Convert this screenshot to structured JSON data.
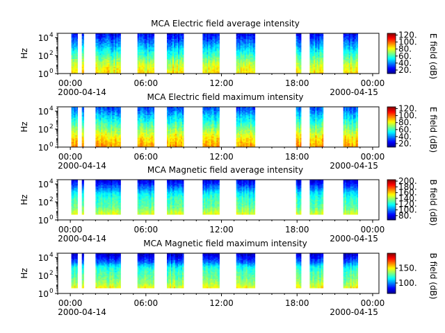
{
  "figure": {
    "x_tick_labels": [
      "00:00",
      "06:00",
      "12:00",
      "18:00",
      "00:00"
    ],
    "x_start_date": "2000-04-14",
    "x_end_date": "2000-04-15"
  },
  "colormap": [
    "#00008f",
    "#0000ff",
    "#007fff",
    "#00ffff",
    "#7fff7f",
    "#ffff00",
    "#ff7f00",
    "#ff0000",
    "#7f0000"
  ],
  "chart_data": [
    {
      "type": "heatmap",
      "title": "MCA  Electric field average intensity",
      "ylabel": "Hz",
      "y_scale": "log",
      "ylim": [
        1,
        30000
      ],
      "y_tick_labels": [
        "10",
        "10",
        "10"
      ],
      "y_tick_exponents": [
        "0",
        "2",
        "4"
      ],
      "xlim": [
        "2000-04-13T23:00",
        "2000-04-15T00:30"
      ],
      "colorbar": {
        "label": "E field (dB)",
        "ticks": [
          "120.",
          "100.",
          "80.",
          "60.",
          "40.",
          "20."
        ],
        "range": [
          10,
          125
        ]
      },
      "data_intervals": [
        [
          "00:05",
          "00:35"
        ],
        [
          "00:55",
          "01:05"
        ],
        [
          "02:00",
          "04:00"
        ],
        [
          "05:20",
          "06:40"
        ],
        [
          "07:40",
          "09:00"
        ],
        [
          "10:30",
          "11:50"
        ],
        [
          "13:10",
          "14:40"
        ],
        [
          "17:55",
          "18:20"
        ],
        [
          "19:00",
          "20:05"
        ],
        [
          "21:40",
          "22:50"
        ]
      ],
      "spectrum_dB": {
        "log10_Hz": [
          0,
          1,
          2,
          3,
          4.3
        ],
        "average": [
          85,
          75,
          60,
          45,
          25
        ]
      }
    },
    {
      "type": "heatmap",
      "title": "MCA  Electric field maximum intensity",
      "ylabel": "Hz",
      "y_scale": "log",
      "ylim": [
        1,
        30000
      ],
      "y_tick_labels": [
        "10",
        "10",
        "10"
      ],
      "y_tick_exponents": [
        "0",
        "2",
        "4"
      ],
      "xlim": [
        "2000-04-13T23:00",
        "2000-04-15T00:30"
      ],
      "colorbar": {
        "label": "E field (dB)",
        "ticks": [
          "120.",
          "100.",
          "80.",
          "60.",
          "40.",
          "20."
        ],
        "range": [
          10,
          125
        ]
      },
      "data_intervals": [
        [
          "00:05",
          "00:35"
        ],
        [
          "00:55",
          "01:05"
        ],
        [
          "02:00",
          "04:00"
        ],
        [
          "05:20",
          "06:40"
        ],
        [
          "07:40",
          "09:00"
        ],
        [
          "10:30",
          "11:50"
        ],
        [
          "13:10",
          "14:40"
        ],
        [
          "17:55",
          "18:20"
        ],
        [
          "19:00",
          "20:05"
        ],
        [
          "21:40",
          "22:50"
        ]
      ],
      "spectrum_dB": {
        "log10_Hz": [
          0,
          1,
          2,
          3,
          4.3
        ],
        "average": [
          95,
          85,
          70,
          55,
          35
        ]
      }
    },
    {
      "type": "heatmap",
      "title": "MCA  Magnetic field average intensity",
      "ylabel": "Hz",
      "y_scale": "log",
      "ylim": [
        1,
        30000
      ],
      "y_tick_labels": [
        "10",
        "10",
        "10"
      ],
      "y_tick_exponents": [
        "0",
        "2",
        "4"
      ],
      "xlim": [
        "2000-04-13T23:00",
        "2000-04-15T00:30"
      ],
      "colorbar": {
        "label": "B field (dB)",
        "ticks": [
          "200.",
          "180.",
          "160.",
          "140.",
          "120.",
          "100.",
          "80."
        ],
        "range": [
          65,
          205
        ]
      },
      "data_intervals": [
        [
          "00:05",
          "00:35"
        ],
        [
          "00:55",
          "01:05"
        ],
        [
          "02:00",
          "04:00"
        ],
        [
          "05:20",
          "06:40"
        ],
        [
          "07:40",
          "09:00"
        ],
        [
          "10:30",
          "11:50"
        ],
        [
          "13:10",
          "14:40"
        ],
        [
          "17:55",
          "18:20"
        ],
        [
          "19:00",
          "20:05"
        ],
        [
          "21:40",
          "22:50"
        ]
      ],
      "spectrum_dB": {
        "log10_Hz": [
          0.6,
          1.0,
          1.5,
          2.3,
          3.0,
          3.5,
          4.3
        ],
        "average": [
          150,
          140,
          130,
          125,
          115,
          100,
          80
        ]
      }
    },
    {
      "type": "heatmap",
      "title": "MCA  Magnetic field maximum intensity",
      "ylabel": "Hz",
      "y_scale": "log",
      "ylim": [
        1,
        30000
      ],
      "y_tick_labels": [
        "10",
        "10",
        "10"
      ],
      "y_tick_exponents": [
        "0",
        "2",
        "4"
      ],
      "xlim": [
        "2000-04-13T23:00",
        "2000-04-15T00:30"
      ],
      "colorbar": {
        "label": "B field (dB)",
        "ticks": [
          "150.",
          "100."
        ],
        "range": [
          65,
          200
        ]
      },
      "data_intervals": [
        [
          "00:05",
          "00:35"
        ],
        [
          "00:55",
          "01:05"
        ],
        [
          "02:00",
          "04:00"
        ],
        [
          "05:20",
          "06:40"
        ],
        [
          "07:40",
          "09:00"
        ],
        [
          "10:30",
          "11:50"
        ],
        [
          "13:10",
          "14:40"
        ],
        [
          "17:55",
          "18:20"
        ],
        [
          "19:00",
          "20:05"
        ],
        [
          "21:40",
          "22:50"
        ]
      ],
      "spectrum_dB": {
        "log10_Hz": [
          0.6,
          1.0,
          1.5,
          2.3,
          3.0,
          3.5,
          4.3
        ],
        "average": [
          150,
          140,
          132,
          125,
          115,
          95,
          75
        ]
      }
    }
  ]
}
